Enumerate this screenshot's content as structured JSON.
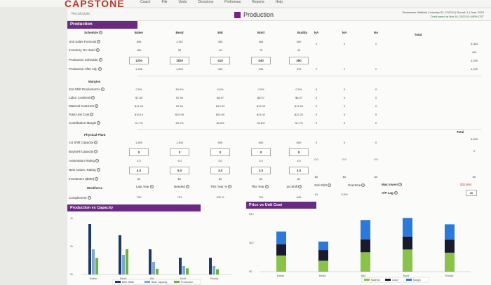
{
  "app": {
    "logo": "CAPSTONE",
    "nav": [
      "Coach",
      "File",
      "Undo",
      "Decisions",
      "Proformas",
      "Reports",
      "Help"
    ],
    "recalculate": "Recalculate",
    "page_title": "Production",
    "team_info": "Teamname: Baldwin | Industry ID: C10024 | Round: 1 | Year: 2024",
    "saved_info": "Draft saved at Mar 18, 2023 01:44PM CST"
  },
  "production": {
    "header": "Production",
    "columns": [
      "Baker",
      "Bead",
      "Bid",
      "Bold",
      "Buddy",
      "NA",
      "NA",
      "NA",
      "Total"
    ],
    "schedule_label": "Schedule",
    "rows": [
      {
        "label": "Unit Sales Forecast",
        "values": [
          "896",
          "1,357",
          "355",
          "366",
          "390",
          "0",
          "0",
          "0",
          "3,364"
        ]
      },
      {
        "label": "Inventory On Hand",
        "values": [
          "189",
          "39",
          "40",
          "78",
          "42",
          "",
          "",
          "",
          "400"
        ]
      },
      {
        "label": "Production Schedule",
        "values": [
          "1200",
          "1820",
          "410",
          "440",
          "380",
          "",
          "",
          "",
          "4,250"
        ]
      },
      {
        "label": "Production After Adj.",
        "values": [
          "1,188",
          "1,802",
          "406",
          "436",
          "376",
          "0",
          "0",
          "0",
          "4,209"
        ]
      }
    ],
    "margins_label": "Margins",
    "margin_rows": [
      {
        "label": "2nd Shift Production%",
        "values": [
          "0.0%",
          "30.0%",
          "0.0%",
          "0.0%",
          "0.0%",
          "0",
          "0",
          "0"
        ]
      },
      {
        "label": "Labor Cost/Unit",
        "values": [
          "$7.85",
          "$7.46",
          "$8.97",
          "$8.97",
          "$8.97",
          "0",
          "0",
          "0"
        ]
      },
      {
        "label": "Material Cost/Unit",
        "values": [
          "$11.28",
          "$7.63",
          "$13.53",
          "$15.45",
          "$13.23",
          "0",
          "0",
          "0"
        ]
      },
      {
        "label": "Total Unit Cost",
        "values": [
          "$19.13",
          "$15.09",
          "$24.50",
          "$24.42",
          "$22.20",
          "0",
          "0",
          "0"
        ]
      },
      {
        "label": "Contribution Margin",
        "values": [
          "31.7%",
          "28.1%",
          "35.5%",
          "34.8%",
          "32.7%",
          "0",
          "0",
          "0"
        ]
      }
    ],
    "plant_label": "Physical Plant",
    "total_label": "Total",
    "plant_rows": [
      {
        "label": "1st Shift Capacity",
        "values": [
          "1,800",
          "1,400",
          "900",
          "600",
          "600",
          "0",
          "0",
          "0",
          "5,500"
        ]
      },
      {
        "label": "Buy/Sell Capacity",
        "values": [
          "0",
          "0",
          "0",
          "0",
          "0",
          "",
          "",
          "",
          "0"
        ]
      },
      {
        "label": "Automation Rating",
        "values": [
          "4.0",
          "5.0",
          "3.0",
          "3.0",
          "3.0",
          "0.0",
          "0.0",
          "0.0"
        ]
      },
      {
        "label": "New Autom. Rating",
        "values": [
          "4.0",
          "5.0",
          "3.0",
          "3.0",
          "3.0"
        ]
      },
      {
        "label": "Investment ($000)",
        "values": [
          "$0",
          "$0",
          "$0",
          "$0",
          "$0",
          "$0",
          "$0",
          "$0",
          "$0",
          "$32,694"
        ]
      }
    ],
    "workforce_label": "Workforce",
    "workforce_headers": [
      "Last Year",
      "Needed",
      "This Year %",
      "This Year",
      "1st Shift",
      "2nd Shift",
      "Overtime",
      "Max Invest",
      "A/P Lag"
    ],
    "complement_label": "Complement",
    "complement_values": [
      "700",
      "701",
      "100 %",
      "701",
      "640",
      "61",
      "0.0%",
      "",
      "30"
    ],
    "max_invest_value": "$32,694",
    "ap_lag_value": "30"
  },
  "chart1": {
    "title": "Production vs Capacity",
    "y_ticks": [
      "4k",
      "2k",
      "0k"
    ],
    "categories": [
      "Baker",
      "Bead",
      "Bid",
      "Bold",
      "Buddy"
    ],
    "legend": [
      "Both Shifts",
      "Base Capacity",
      "Production"
    ],
    "colors": {
      "both": "#1e3a6b",
      "base": "#7fa9c9",
      "prod": "#6bb33a"
    }
  },
  "chart2": {
    "title": "Price vs Unit Cost",
    "y_ticks": [
      "$40",
      "$20",
      "$0"
    ],
    "categories": [
      "Baker",
      "Bead",
      "Bid",
      "Bold",
      "Buddy"
    ],
    "legend": [
      "Material",
      "Labor",
      "Margin"
    ],
    "colors": {
      "margin": "#2b7ad9",
      "labor": "#1a1a2e",
      "material": "#8bc34a"
    }
  },
  "chart_data": [
    {
      "type": "bar",
      "title": "Production vs Capacity",
      "categories": [
        "Baker",
        "Bead",
        "Bid",
        "Bold",
        "Buddy"
      ],
      "series": [
        {
          "name": "Both Shifts",
          "values": [
            3600,
            2800,
            1800,
            1200,
            1200
          ]
        },
        {
          "name": "Base Capacity",
          "values": [
            1800,
            1400,
            900,
            600,
            600
          ]
        },
        {
          "name": "Production",
          "values": [
            1188,
            1802,
            406,
            436,
            376
          ]
        }
      ],
      "ylim": [
        0,
        4000
      ]
    },
    {
      "type": "bar",
      "title": "Price vs Unit Cost",
      "categories": [
        "Baker",
        "Bead",
        "Bid",
        "Bold",
        "Buddy"
      ],
      "series": [
        {
          "name": "Material",
          "values": [
            11.28,
            7.63,
            13.53,
            15.45,
            13.23
          ]
        },
        {
          "name": "Labor",
          "values": [
            7.85,
            7.46,
            8.97,
            8.97,
            8.97
          ]
        },
        {
          "name": "Margin",
          "values": [
            8.87,
            5.9,
            13.49,
            13.03,
            10.79
          ]
        }
      ],
      "ylim": [
        0,
        40
      ]
    }
  ]
}
